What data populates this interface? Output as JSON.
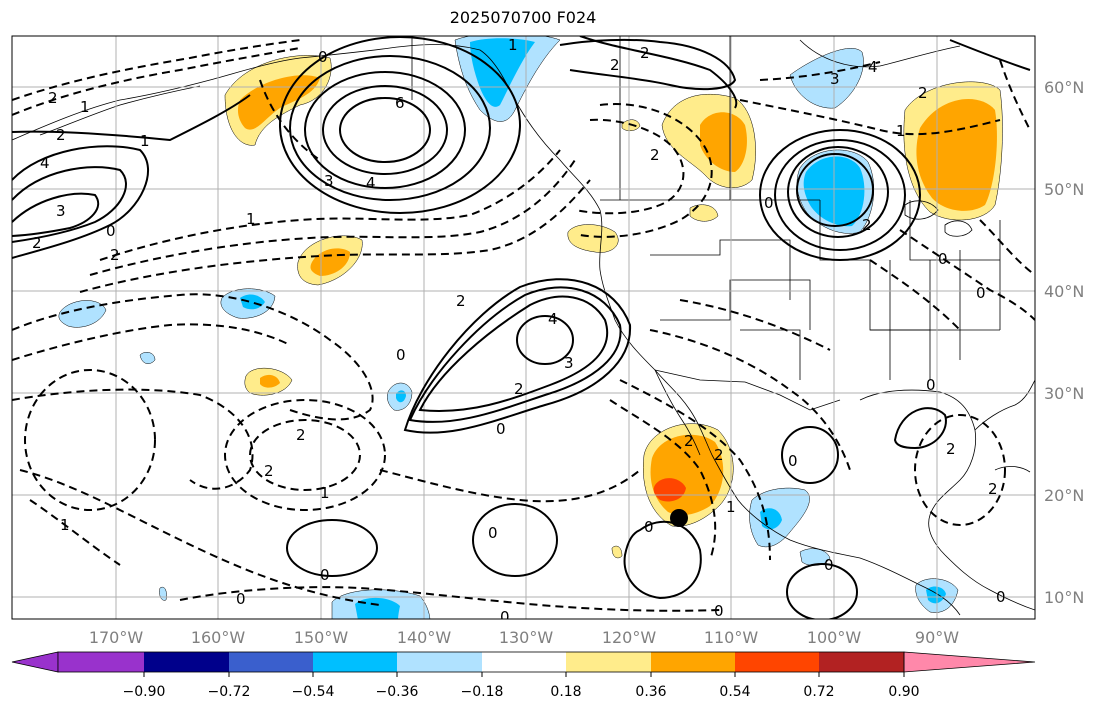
{
  "title": "2025070700 F024",
  "lon_labels": [
    "170°W",
    "160°W",
    "150°W",
    "140°W",
    "130°W",
    "120°W",
    "110°W",
    "100°W",
    "90°W"
  ],
  "lat_labels": [
    "60°N",
    "50°N",
    "40°N",
    "30°N",
    "20°N",
    "10°N"
  ],
  "colorbar": {
    "tick_labels": [
      "−0.90",
      "−0.72",
      "−0.54",
      "−0.36",
      "−0.18",
      "0.18",
      "0.36",
      "0.54",
      "0.72",
      "0.90"
    ],
    "colors": [
      "#9932cc",
      "#00008b",
      "#3a5fcd",
      "#00bfff",
      "#b0e2ff",
      "#ffffff",
      "#ffec8b",
      "#ffa500",
      "#ff4500",
      "#b22222",
      "#ff88aa"
    ]
  },
  "contour_labels": [
    "2",
    "1",
    "2",
    "1",
    "0",
    "6",
    "3",
    "4",
    "4",
    "3",
    "2",
    "0",
    "2",
    "2",
    "2",
    "1",
    "1",
    "2",
    "3",
    "4",
    "2",
    "0",
    "1",
    "2",
    "1",
    "2",
    "4",
    "3",
    "2",
    "2",
    "2",
    "0",
    "0",
    "0",
    "1",
    "0",
    "2",
    "2",
    "2",
    "1",
    "0",
    "0",
    "0",
    "0",
    "0",
    "0",
    "0",
    "0",
    "0",
    "2",
    "0"
  ],
  "colors": {
    "contour": "#000000",
    "grid": "#b0b0b0",
    "coast": "#000000",
    "marker": "#000000"
  }
}
